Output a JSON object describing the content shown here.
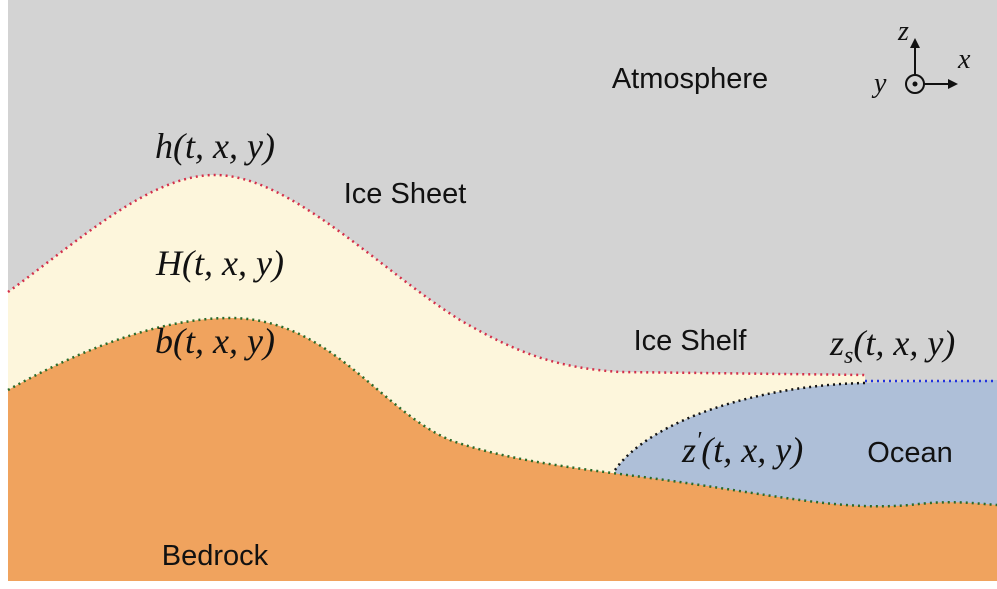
{
  "regions": {
    "atmosphere": "Atmosphere",
    "ice_sheet": "Ice Sheet",
    "ice_shelf": "Ice Shelf",
    "ocean": "Ocean",
    "bedrock": "Bedrock"
  },
  "surfaces": {
    "surface_height": {
      "base": "h",
      "args": "(t, x, y)"
    },
    "thickness": {
      "base": "H",
      "args": "(t, x, y)"
    },
    "bed": {
      "base": "b",
      "args": "(t, x, y)"
    },
    "sea_surface": {
      "base": "z",
      "sub": "s",
      "args": "(t, x, y)"
    },
    "shelf_base": {
      "base": "z",
      "sup": "′",
      "args": "(t, x, y)"
    }
  },
  "axes": {
    "z": "z",
    "x": "x",
    "y": "y"
  }
}
